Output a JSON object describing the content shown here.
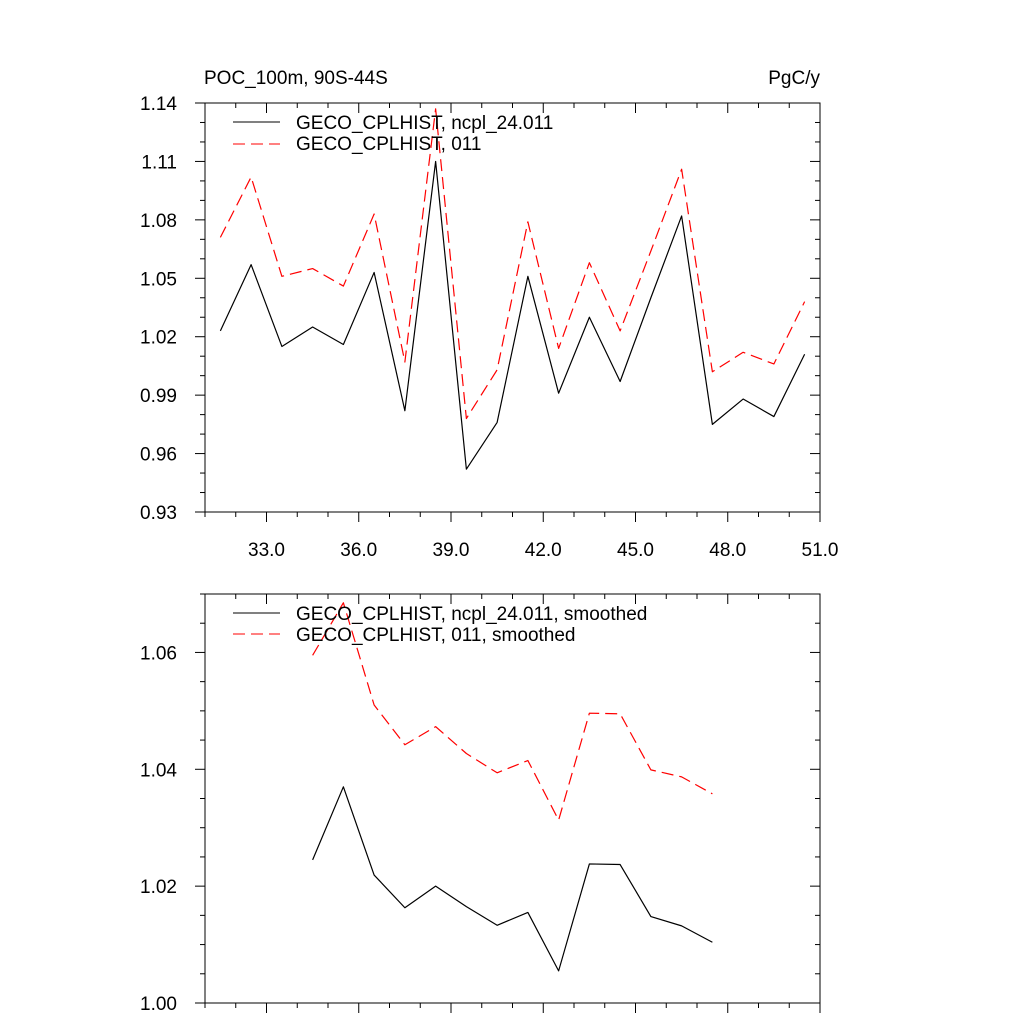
{
  "chart_data": [
    {
      "type": "line",
      "title": "POC_100m, 90S-44S",
      "units": "PgC/y",
      "xlim": [
        31.0,
        51.0
      ],
      "ylim": [
        0.93,
        1.14
      ],
      "xticks": [
        33.0,
        36.0,
        39.0,
        42.0,
        45.0,
        48.0,
        51.0
      ],
      "xtick_labels": [
        "33.0",
        "36.0",
        "39.0",
        "42.0",
        "45.0",
        "48.0",
        "51.0"
      ],
      "yticks": [
        0.93,
        0.96,
        0.99,
        1.02,
        1.05,
        1.08,
        1.11,
        1.14
      ],
      "ytick_labels": [
        "0.93",
        "0.96",
        "0.99",
        "1.02",
        "1.05",
        "1.08",
        "1.11",
        "1.14"
      ],
      "legend_position": "top-left",
      "x": [
        31.5,
        32.5,
        33.5,
        34.5,
        35.5,
        36.5,
        37.5,
        38.5,
        39.5,
        40.5,
        41.5,
        42.5,
        43.5,
        44.5,
        45.5,
        46.5,
        47.5,
        48.5,
        49.5,
        50.5
      ],
      "series": [
        {
          "name": "GECO_CPLHIST, ncpl_24.011",
          "color": "#000000",
          "dash": "solid",
          "values": [
            1.023,
            1.057,
            1.015,
            1.025,
            1.016,
            1.053,
            0.982,
            1.11,
            0.952,
            0.976,
            1.051,
            0.991,
            1.03,
            0.997,
            1.04,
            1.082,
            0.975,
            0.988,
            0.979,
            1.011
          ]
        },
        {
          "name": "GECO_CPLHIST, 011",
          "color": "#ff0000",
          "dash": "dashed",
          "values": [
            1.071,
            1.102,
            1.051,
            1.055,
            1.046,
            1.083,
            1.007,
            1.137,
            0.978,
            1.003,
            1.079,
            1.014,
            1.058,
            1.023,
            1.064,
            1.106,
            1.002,
            1.012,
            1.006,
            1.038
          ]
        }
      ]
    },
    {
      "type": "line",
      "xlim": [
        31.0,
        51.0
      ],
      "ylim": [
        1.0,
        1.07
      ],
      "xticks": [
        33.0,
        36.0,
        39.0,
        42.0,
        45.0,
        48.0,
        51.0
      ],
      "yticks": [
        1.0,
        1.02,
        1.04,
        1.06
      ],
      "ytick_labels": [
        "1.00",
        "1.02",
        "1.04",
        "1.06"
      ],
      "legend_position": "top-left",
      "x": [
        34.5,
        35.5,
        36.5,
        37.5,
        38.5,
        39.5,
        40.5,
        41.5,
        42.5,
        43.5,
        44.5,
        45.5,
        46.5,
        47.5
      ],
      "series": [
        {
          "name": "GECO_CPLHIST, ncpl_24.011, smoothed",
          "color": "#000000",
          "dash": "solid",
          "values": [
            1.0245,
            1.037,
            1.0219,
            1.0163,
            1.02,
            1.0165,
            1.0133,
            1.0155,
            1.0055,
            1.0238,
            1.0237,
            1.0148,
            1.0132,
            1.0104
          ]
        },
        {
          "name": "GECO_CPLHIST, 011, smoothed",
          "color": "#ff0000",
          "dash": "dashed",
          "values": [
            1.0595,
            1.0685,
            1.051,
            1.0442,
            1.0473,
            1.0427,
            1.0394,
            1.0415,
            1.0313,
            1.0496,
            1.0495,
            1.0399,
            1.0387,
            1.0358
          ]
        }
      ]
    }
  ]
}
